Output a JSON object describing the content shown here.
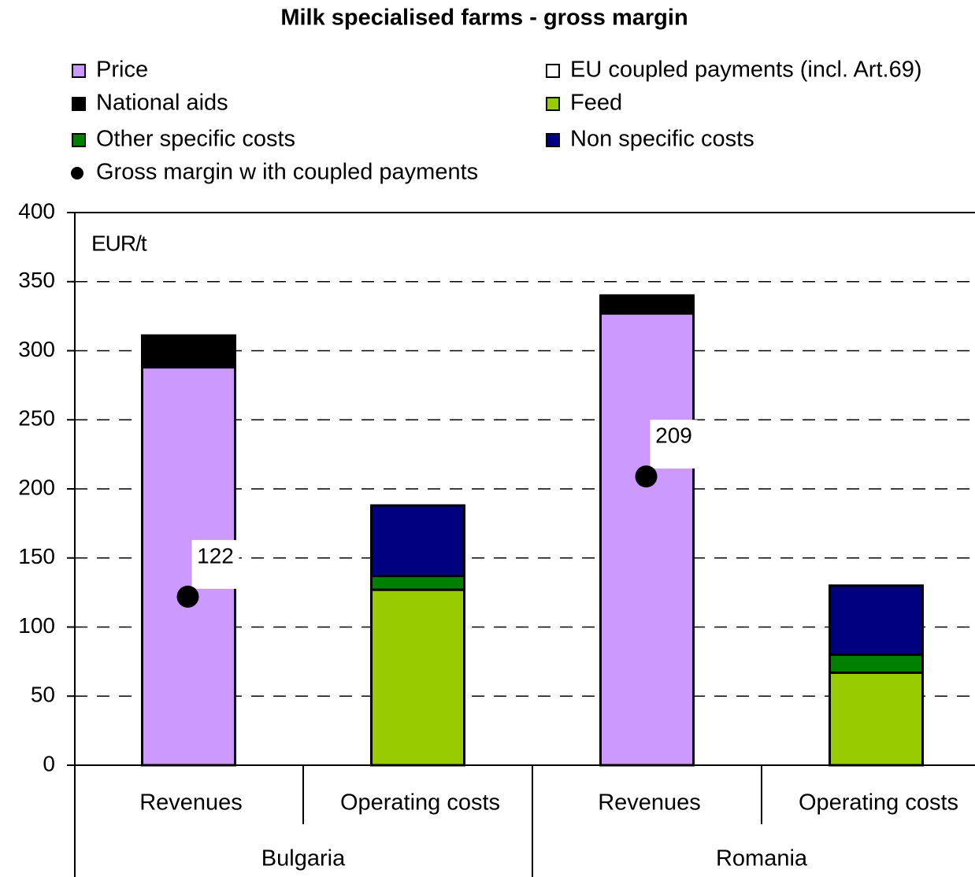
{
  "chart_data": {
    "type": "bar",
    "stacked": true,
    "title": "Milk specialised farms - gross margin",
    "y_label": "EUR/t",
    "categories": [
      "Revenues",
      "Operating costs",
      "Revenues",
      "Operating costs"
    ],
    "groups": [
      "Bulgaria",
      "Romania"
    ],
    "series": [
      {
        "name": "Price",
        "color": "#cc99ff",
        "values": [
          288,
          null,
          327,
          null
        ]
      },
      {
        "name": "EU coupled payments (incl. Art.69)",
        "color": "#ffffff",
        "values": [
          0,
          null,
          0,
          null
        ]
      },
      {
        "name": "National aids",
        "color": "#000000",
        "values": [
          23,
          null,
          13,
          null
        ]
      },
      {
        "name": "Feed",
        "color": "#99cc00",
        "values": [
          null,
          127,
          null,
          67
        ]
      },
      {
        "name": "Other specific costs",
        "color": "#008000",
        "values": [
          null,
          10,
          null,
          13
        ]
      },
      {
        "name": "Non specific costs",
        "color": "#000080",
        "values": [
          null,
          51,
          null,
          50
        ]
      }
    ],
    "markers": {
      "name": "Gross margin w ith coupled payments",
      "color": "#000000",
      "values": [
        122,
        null,
        209,
        null
      ]
    },
    "ylim": [
      0,
      400
    ],
    "yticks": [
      0,
      50,
      100,
      150,
      200,
      250,
      300,
      350,
      400
    ],
    "grid": true
  }
}
